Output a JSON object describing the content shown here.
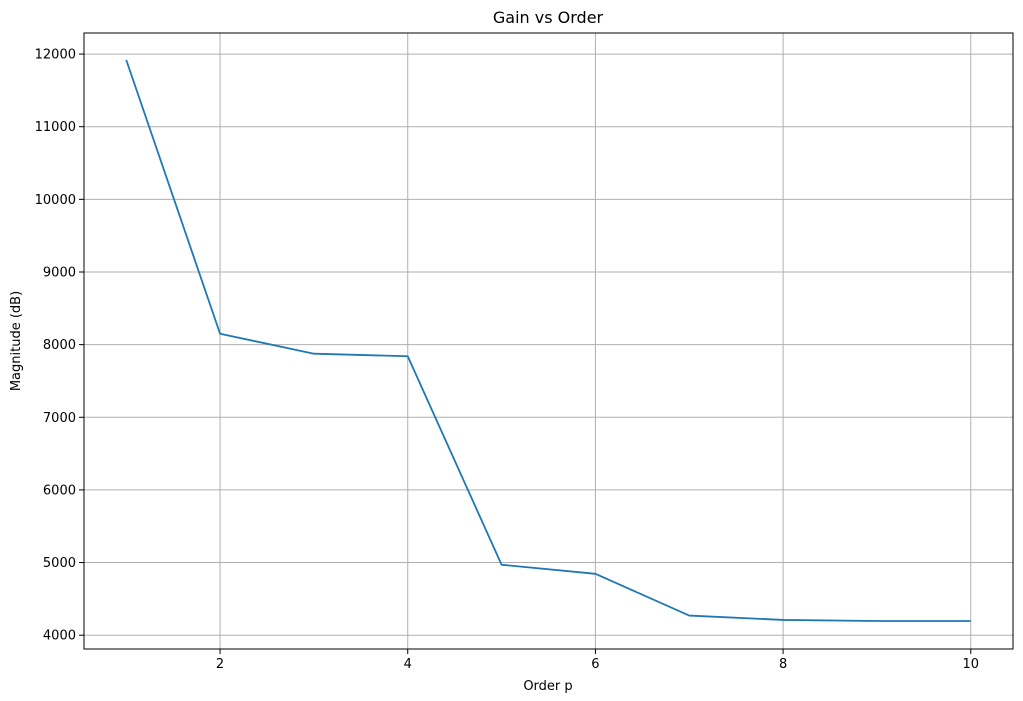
{
  "chart_data": {
    "type": "line",
    "title": "Gain vs Order",
    "xlabel": "Order p",
    "ylabel": "Magnitude (dB)",
    "x": [
      1,
      2,
      3,
      4,
      5,
      6,
      7,
      8,
      9,
      10
    ],
    "series": [
      {
        "values": [
          11920,
          8150,
          7875,
          7840,
          4970,
          4845,
          4270,
          4210,
          4195,
          4195
        ],
        "color": "#1f77b4"
      }
    ],
    "xlim": [
      0.55,
      10.45
    ],
    "ylim": [
      3810,
      12290
    ],
    "xticks": [
      2,
      4,
      6,
      8,
      10
    ],
    "yticks": [
      4000,
      5000,
      6000,
      7000,
      8000,
      9000,
      10000,
      11000,
      12000
    ],
    "grid": true,
    "grid_color": "#b0b0b0"
  }
}
